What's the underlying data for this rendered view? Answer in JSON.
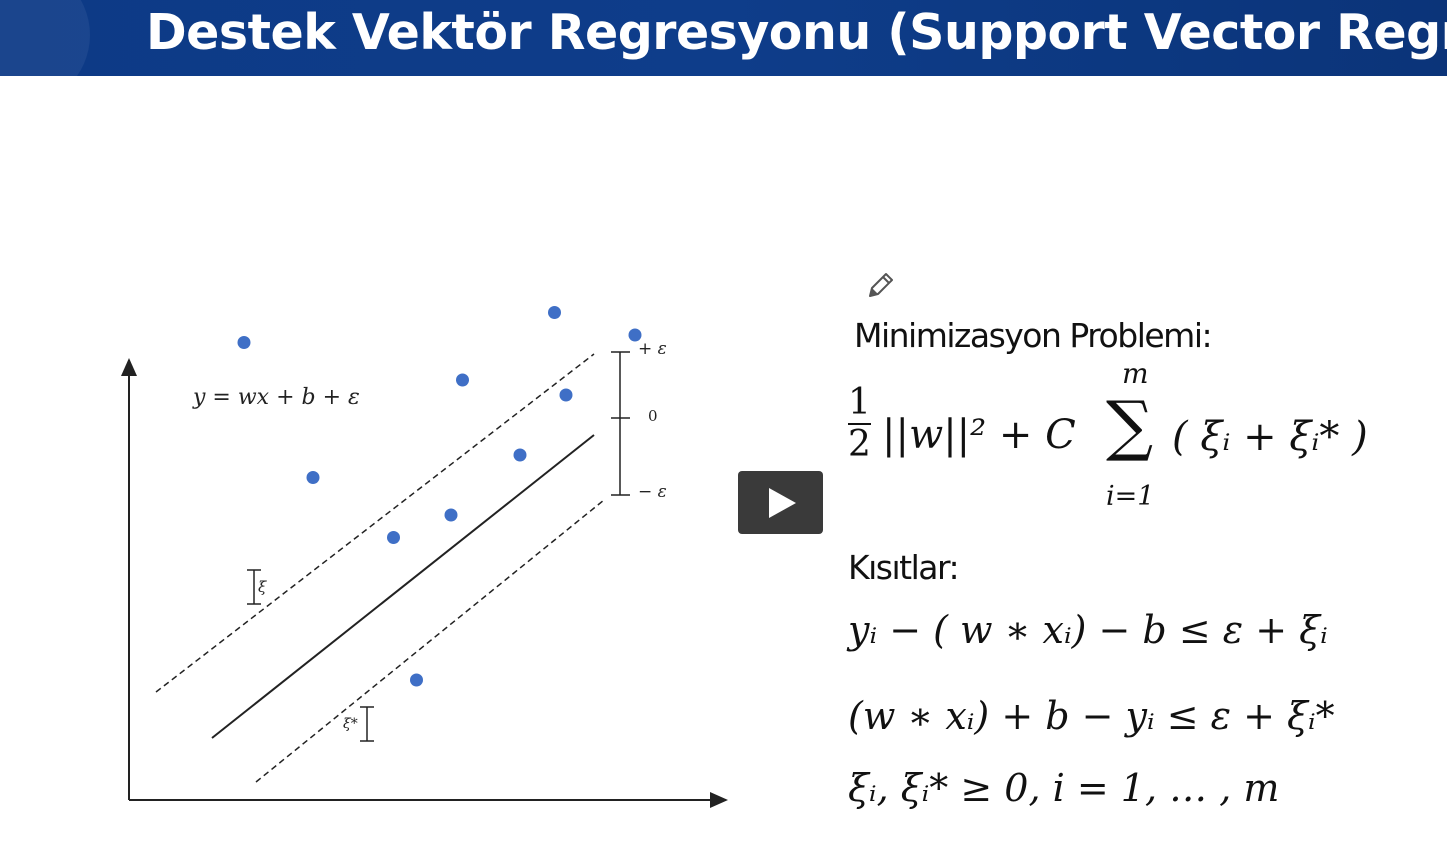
{
  "title": "Destek Vektör Regresyonu (Support Vector Regressio",
  "diagram": {
    "equation": "y = wx + b + ε",
    "margin_top_label": "+ ε",
    "margin_mid_label": "0",
    "margin_bottom_label": "− ε",
    "slack_upper_label": "ξ",
    "slack_lower_label": "ξ*",
    "points": [
      {
        "x": 1.0,
        "y": 4.1
      },
      {
        "x": 1.6,
        "y": 2.3
      },
      {
        "x": 2.3,
        "y": 1.5
      },
      {
        "x": 2.8,
        "y": 1.8
      },
      {
        "x": 2.9,
        "y": 3.6
      },
      {
        "x": 3.4,
        "y": 2.6
      },
      {
        "x": 3.7,
        "y": 4.5
      },
      {
        "x": 3.8,
        "y": 3.4
      },
      {
        "x": 4.4,
        "y": 4.2
      },
      {
        "x": 2.5,
        "y": -0.4
      }
    ]
  },
  "formulas": {
    "minimization_heading": "Minimizasyon Problemi:",
    "objective": {
      "frac_num": "1",
      "frac_den": "2",
      "norm_term": "||w||² + C",
      "sum_top": "m",
      "sum_symbol": "∑",
      "sum_bottom": "i=1",
      "sum_body": "( ξᵢ + ξᵢ* )"
    },
    "constraints_heading": "Kısıtlar:",
    "constraint_1": "yᵢ − ( w ∗ xᵢ) − b ≤ ε + ξᵢ",
    "constraint_2": "(w ∗ xᵢ) + b − yᵢ ≤ ε + ξᵢ*",
    "constraint_3": "ξᵢ, ξᵢ* ≥ 0,       i = 1, … , m"
  },
  "icons": {
    "play": "play-icon",
    "pencil": "pencil-icon"
  }
}
